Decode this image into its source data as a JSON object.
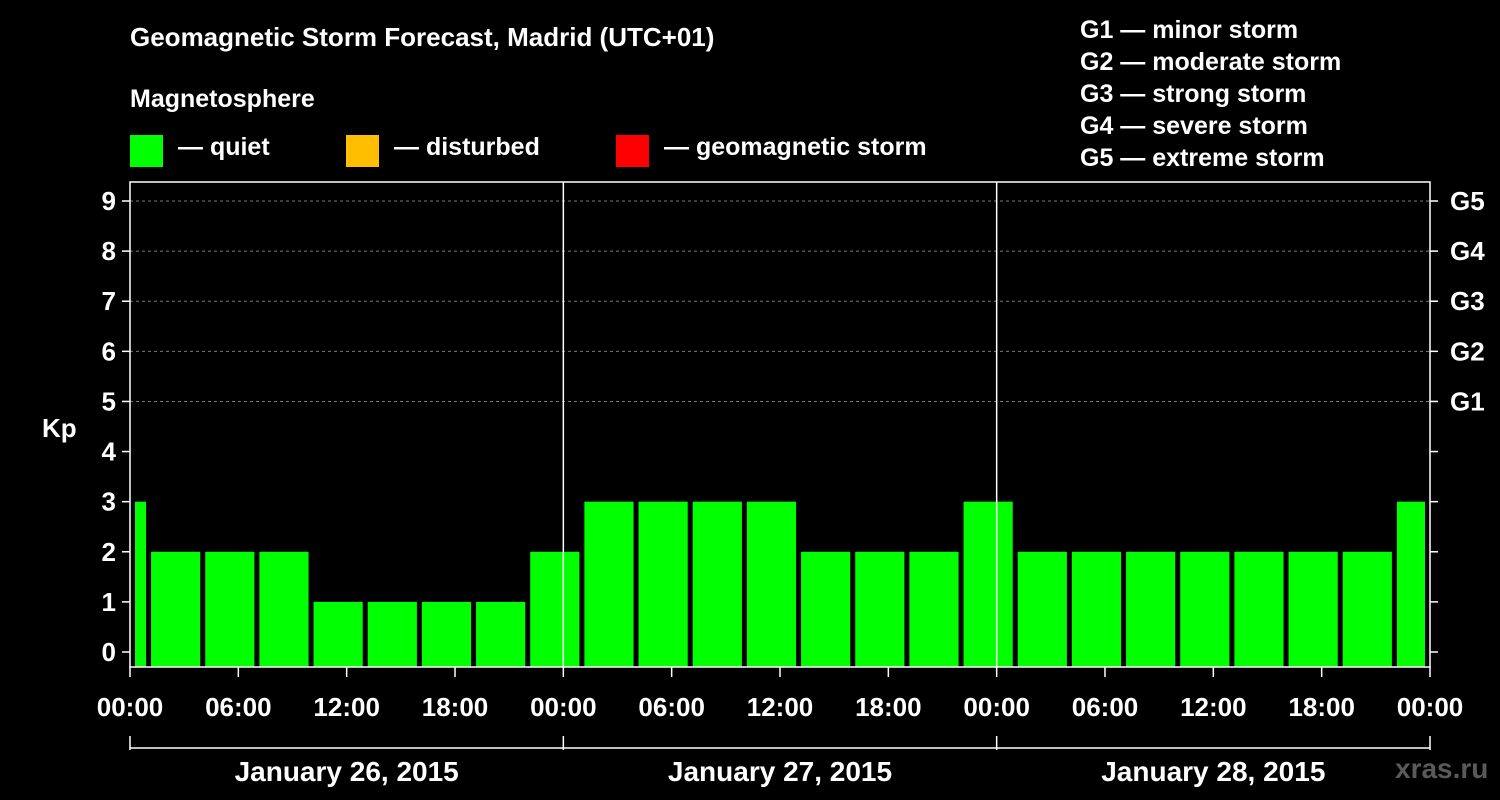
{
  "title": "Geomagnetic Storm Forecast, Madrid (UTC+01)",
  "subtitle": "Magnetosphere",
  "legend": [
    {
      "label": "— quiet",
      "color": "#00ff00"
    },
    {
      "label": "— disturbed",
      "color": "#ffbf00"
    },
    {
      "label": "— geomagnetic storm",
      "color": "#ff0000"
    }
  ],
  "storm_levels": [
    "G1 — minor storm",
    "G2 — moderate storm",
    "G3 — strong storm",
    "G4 — severe storm",
    "G5 — extreme storm"
  ],
  "watermark": "xras.ru",
  "chart_data": {
    "type": "bar",
    "title": "Geomagnetic Storm Forecast, Madrid (UTC+01)",
    "ylabel": "Kp",
    "ylim": [
      0,
      9
    ],
    "y_ticks": [
      "0",
      "1",
      "2",
      "3",
      "4",
      "5",
      "6",
      "7",
      "8",
      "9"
    ],
    "right_ticks": [
      {
        "kp": 5,
        "label": "G1"
      },
      {
        "kp": 6,
        "label": "G2"
      },
      {
        "kp": 7,
        "label": "G3"
      },
      {
        "kp": 8,
        "label": "G4"
      },
      {
        "kp": 9,
        "label": "G5"
      }
    ],
    "x_range_hours": [
      0,
      72
    ],
    "x_tick_labels": [
      "00:00",
      "06:00",
      "12:00",
      "18:00",
      "00:00",
      "06:00",
      "12:00",
      "18:00",
      "00:00",
      "06:00",
      "12:00",
      "18:00",
      "00:00"
    ],
    "days": [
      "January 26, 2015",
      "January 27, 2015",
      "January 28, 2015"
    ],
    "bars": [
      {
        "start": 0,
        "end": 1,
        "kp": 3
      },
      {
        "start": 1,
        "end": 4,
        "kp": 2
      },
      {
        "start": 4,
        "end": 7,
        "kp": 2
      },
      {
        "start": 7,
        "end": 10,
        "kp": 2
      },
      {
        "start": 10,
        "end": 13,
        "kp": 1
      },
      {
        "start": 13,
        "end": 16,
        "kp": 1
      },
      {
        "start": 16,
        "end": 19,
        "kp": 1
      },
      {
        "start": 19,
        "end": 22,
        "kp": 1
      },
      {
        "start": 22,
        "end": 25,
        "kp": 2
      },
      {
        "start": 25,
        "end": 28,
        "kp": 3
      },
      {
        "start": 28,
        "end": 31,
        "kp": 3
      },
      {
        "start": 31,
        "end": 34,
        "kp": 3
      },
      {
        "start": 34,
        "end": 37,
        "kp": 3
      },
      {
        "start": 37,
        "end": 40,
        "kp": 2
      },
      {
        "start": 40,
        "end": 43,
        "kp": 2
      },
      {
        "start": 43,
        "end": 46,
        "kp": 2
      },
      {
        "start": 46,
        "end": 49,
        "kp": 3
      },
      {
        "start": 49,
        "end": 52,
        "kp": 2
      },
      {
        "start": 52,
        "end": 55,
        "kp": 2
      },
      {
        "start": 55,
        "end": 58,
        "kp": 2
      },
      {
        "start": 58,
        "end": 61,
        "kp": 2
      },
      {
        "start": 61,
        "end": 64,
        "kp": 2
      },
      {
        "start": 64,
        "end": 67,
        "kp": 2
      },
      {
        "start": 67,
        "end": 70,
        "kp": 2
      },
      {
        "start": 70,
        "end": 72,
        "kp": 3
      }
    ],
    "quiet_color": "#00ff00"
  }
}
